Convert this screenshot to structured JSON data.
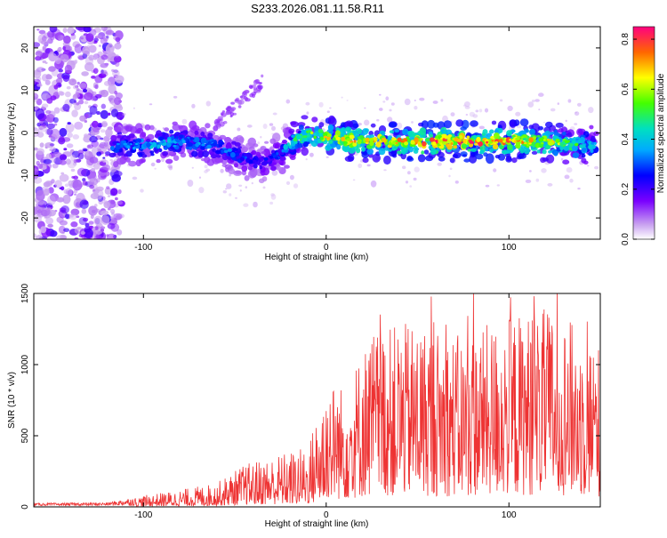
{
  "title": "S233.2026.081.11.58.R11",
  "colors": {
    "snr_line": "#ee3333",
    "frame": "#000000"
  },
  "chart_data": [
    {
      "type": "heatmap",
      "name": "spectrogram",
      "xlabel": "Height of straight line (km)",
      "ylabel": "Frequency (Hz)",
      "xlim": [
        -160,
        150
      ],
      "ylim": [
        -25,
        25
      ],
      "xticks": [
        -100,
        0,
        100
      ],
      "yticks": [
        -20,
        -10,
        0,
        10,
        20
      ],
      "xtick_labels": [
        "-100",
        "0",
        "100"
      ],
      "ytick_labels": [
        "-20",
        "-10",
        "0",
        "10",
        "20"
      ],
      "colorbar": {
        "label": "Normalized spectral amplitude",
        "range": [
          0.0,
          0.85
        ],
        "ticks": [
          0.0,
          0.2,
          0.4,
          0.6,
          0.8
        ],
        "tick_labels": [
          "0.0",
          "0.2",
          "0.4",
          "0.6",
          "0.8"
        ]
      },
      "ridge": {
        "x": [
          -115,
          -100,
          -80,
          -60,
          -45,
          -35,
          -25,
          -18,
          -10,
          0,
          20,
          40,
          60,
          80,
          100,
          120,
          145
        ],
        "y": [
          -3,
          -3,
          -2,
          -3,
          -6,
          -7,
          -5,
          -2,
          0,
          -1,
          -2,
          -2,
          -2,
          -2,
          -2,
          -2,
          -3
        ],
        "amplitude": [
          0.35,
          0.4,
          0.4,
          0.35,
          0.3,
          0.25,
          0.3,
          0.5,
          0.6,
          0.7,
          0.75,
          0.75,
          0.8,
          0.8,
          0.75,
          0.7,
          0.45
        ]
      }
    },
    {
      "type": "line",
      "name": "snr",
      "xlabel": "Height of straight line (km)",
      "ylabel": "SNR (10 * v/v)",
      "xlim": [
        -160,
        150
      ],
      "ylim": [
        0,
        1500
      ],
      "xticks": [
        -100,
        0,
        100
      ],
      "yticks": [
        0,
        500,
        1000,
        1500
      ],
      "xtick_labels": [
        "-100",
        "0",
        "100"
      ],
      "ytick_labels": [
        "0",
        "500",
        "1000",
        "1500"
      ],
      "envelope": {
        "x": [
          -160,
          -120,
          -100,
          -80,
          -60,
          -45,
          -30,
          -10,
          0,
          10,
          25,
          50,
          75,
          100,
          125,
          150
        ],
        "y": [
          20,
          25,
          80,
          120,
          170,
          300,
          360,
          430,
          900,
          850,
          1250,
          1300,
          1200,
          1350,
          1400,
          1150
        ]
      }
    }
  ]
}
